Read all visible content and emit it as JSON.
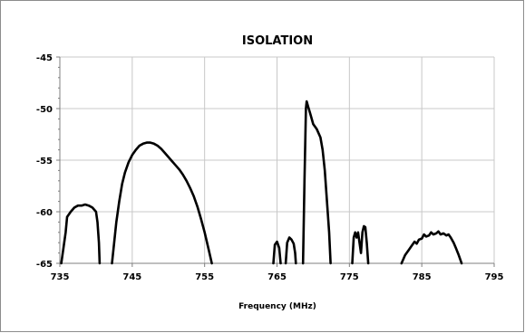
{
  "chart_data": {
    "type": "line",
    "title": "ISOLATION",
    "xlabel": "Frequency (MHz)",
    "ylabel": "",
    "xlim": [
      735,
      795
    ],
    "ylim": [
      -65,
      -45
    ],
    "x_ticks": [
      735,
      745,
      755,
      765,
      775,
      785,
      795
    ],
    "y_ticks": [
      -45,
      -50,
      -55,
      -60,
      -65
    ],
    "grid": true,
    "legend": "none",
    "colors": {
      "series": "#000000",
      "grid": "#c8c8c8",
      "axis": "#7f7f7f",
      "frame": "#8c8c8c"
    },
    "series": [
      {
        "values": [
          [
            [
              735.2,
              -65
            ],
            [
              735.5,
              -63.5
            ],
            [
              735.8,
              -62
            ],
            [
              736,
              -60.5
            ],
            [
              736.5,
              -60
            ],
            [
              737,
              -59.6
            ],
            [
              737.5,
              -59.4
            ],
            [
              738,
              -59.4
            ],
            [
              738.5,
              -59.3
            ],
            [
              739,
              -59.4
            ],
            [
              739.5,
              -59.6
            ],
            [
              740,
              -60
            ],
            [
              740.2,
              -61
            ],
            [
              740.4,
              -63
            ],
            [
              740.5,
              -65
            ]
          ],
          [
            [
              742.2,
              -65
            ],
            [
              742.5,
              -63
            ],
            [
              742.8,
              -61
            ],
            [
              743.2,
              -59
            ],
            [
              743.6,
              -57.3
            ],
            [
              744,
              -56.2
            ],
            [
              744.5,
              -55.2
            ],
            [
              745,
              -54.5
            ],
            [
              745.5,
              -54.0
            ],
            [
              746,
              -53.6
            ],
            [
              746.5,
              -53.4
            ],
            [
              747,
              -53.3
            ],
            [
              747.5,
              -53.3
            ],
            [
              748,
              -53.4
            ],
            [
              748.5,
              -53.6
            ],
            [
              749,
              -53.9
            ],
            [
              749.5,
              -54.3
            ],
            [
              750,
              -54.7
            ],
            [
              750.5,
              -55.1
            ],
            [
              751,
              -55.5
            ],
            [
              751.5,
              -55.9
            ],
            [
              752,
              -56.4
            ],
            [
              752.5,
              -57.0
            ],
            [
              753,
              -57.7
            ],
            [
              753.5,
              -58.5
            ],
            [
              754,
              -59.5
            ],
            [
              754.5,
              -60.7
            ],
            [
              755,
              -62
            ],
            [
              755.5,
              -63.5
            ],
            [
              756,
              -65
            ]
          ],
          [
            [
              764.5,
              -65
            ],
            [
              764.7,
              -63.2
            ],
            [
              765,
              -62.9
            ],
            [
              765.3,
              -63.5
            ],
            [
              765.5,
              -65
            ]
          ],
          [
            [
              766.2,
              -65
            ],
            [
              766.4,
              -63
            ],
            [
              766.7,
              -62.5
            ],
            [
              767,
              -62.7
            ],
            [
              767.3,
              -63.1
            ],
            [
              767.5,
              -64
            ],
            [
              767.6,
              -65
            ]
          ],
          [
            [
              768.6,
              -65
            ],
            [
              768.8,
              -57
            ],
            [
              769,
              -50
            ],
            [
              769.1,
              -49.3
            ],
            [
              769.3,
              -49.8
            ],
            [
              769.6,
              -50.5
            ],
            [
              770,
              -51.5
            ],
            [
              770.5,
              -52
            ],
            [
              771,
              -52.8
            ],
            [
              771.3,
              -54
            ],
            [
              771.6,
              -56
            ],
            [
              771.9,
              -59
            ],
            [
              772.2,
              -62
            ],
            [
              772.4,
              -65
            ]
          ],
          [
            [
              775.4,
              -65
            ],
            [
              775.6,
              -62.5
            ],
            [
              775.8,
              -62
            ],
            [
              776,
              -62.5
            ],
            [
              776.2,
              -62
            ],
            [
              776.4,
              -63
            ],
            [
              776.6,
              -64
            ],
            [
              776.8,
              -62
            ],
            [
              777,
              -61.4
            ],
            [
              777.2,
              -61.5
            ],
            [
              777.4,
              -63
            ],
            [
              777.6,
              -65
            ]
          ],
          [
            [
              782.2,
              -65
            ],
            [
              782.7,
              -64.2
            ],
            [
              783.2,
              -63.7
            ],
            [
              783.6,
              -63.3
            ],
            [
              784,
              -62.9
            ],
            [
              784.3,
              -63.1
            ],
            [
              784.6,
              -62.7
            ],
            [
              785,
              -62.6
            ],
            [
              785.3,
              -62.2
            ],
            [
              785.6,
              -62.4
            ],
            [
              786,
              -62.3
            ],
            [
              786.3,
              -62.0
            ],
            [
              786.6,
              -62.2
            ],
            [
              787,
              -62.1
            ],
            [
              787.3,
              -61.9
            ],
            [
              787.6,
              -62.2
            ],
            [
              788,
              -62.1
            ],
            [
              788.4,
              -62.3
            ],
            [
              788.7,
              -62.2
            ],
            [
              789,
              -62.5
            ],
            [
              789.4,
              -63.0
            ],
            [
              789.7,
              -63.5
            ],
            [
              790.1,
              -64.2
            ],
            [
              790.5,
              -65
            ]
          ]
        ]
      }
    ]
  }
}
